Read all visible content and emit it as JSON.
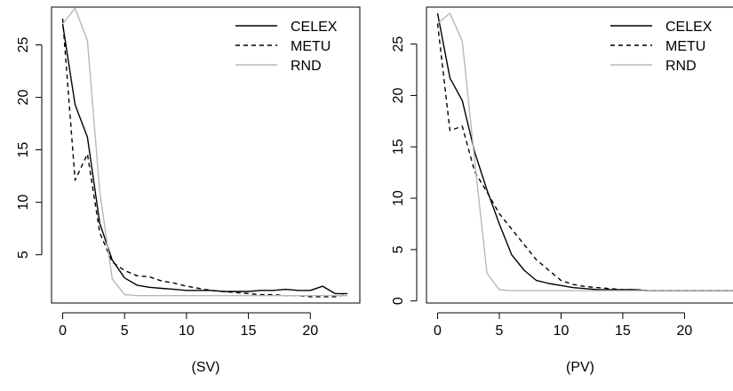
{
  "chart_data": [
    {
      "type": "line",
      "xlabel": "(SV)",
      "ylabel": "",
      "xlim": [
        -0.9,
        24
      ],
      "ylim": [
        0.4,
        28.6
      ],
      "xticks": [
        0,
        5,
        10,
        15,
        20
      ],
      "yticks": [
        5,
        10,
        15,
        20,
        25
      ],
      "grid": false,
      "legend_position": "top-right",
      "series": [
        {
          "name": "CELEX",
          "style": "solid",
          "color": "#000000",
          "x": [
            0,
            1,
            2,
            3,
            4,
            5,
            6,
            7,
            8,
            9,
            10,
            11,
            12,
            13,
            14,
            15,
            16,
            17,
            18,
            19,
            20,
            21,
            22,
            23
          ],
          "y": [
            27,
            19.3,
            16.2,
            8,
            4.5,
            2.8,
            2.1,
            1.9,
            1.8,
            1.7,
            1.6,
            1.6,
            1.6,
            1.5,
            1.5,
            1.5,
            1.6,
            1.6,
            1.7,
            1.6,
            1.6,
            2.0,
            1.3,
            1.3
          ]
        },
        {
          "name": "METU",
          "style": "dashed",
          "color": "#000000",
          "x": [
            0,
            1,
            2,
            3,
            4,
            5,
            6,
            7,
            8,
            9,
            10,
            11,
            12,
            13,
            14,
            15,
            16,
            17,
            18,
            19,
            20,
            21,
            22,
            23
          ],
          "y": [
            27.5,
            12.1,
            14.6,
            7.1,
            4.3,
            3.5,
            3.0,
            2.9,
            2.5,
            2.3,
            2.0,
            1.8,
            1.6,
            1.5,
            1.4,
            1.3,
            1.2,
            1.2,
            1.1,
            1.1,
            1.0,
            1.0,
            1.0,
            1.2
          ]
        },
        {
          "name": "RND",
          "style": "solid",
          "color": "#b8b8b8",
          "x": [
            0,
            1,
            2,
            3,
            4,
            5,
            6,
            7,
            8,
            9,
            10,
            11,
            12,
            13,
            14,
            15,
            16,
            17,
            18,
            19,
            20,
            21,
            22,
            23
          ],
          "y": [
            27,
            28.5,
            25.4,
            11,
            2.7,
            1.2,
            1.1,
            1.1,
            1.1,
            1.1,
            1.1,
            1.1,
            1.1,
            1.1,
            1.1,
            1.1,
            1.1,
            1.1,
            1.1,
            1.1,
            1.1,
            1.1,
            1.1,
            1.1
          ]
        }
      ]
    },
    {
      "type": "line",
      "xlabel": "(PV)",
      "ylabel": "",
      "xlim": [
        -0.9,
        24
      ],
      "ylim": [
        -0.2,
        28.6
      ],
      "xticks": [
        0,
        5,
        10,
        15,
        20
      ],
      "yticks": [
        0,
        5,
        10,
        15,
        20,
        25
      ],
      "grid": false,
      "legend_position": "top-right",
      "series": [
        {
          "name": "CELEX",
          "style": "solid",
          "color": "#000000",
          "x": [
            0,
            1,
            2,
            3,
            4,
            5,
            6,
            7,
            8,
            9,
            10,
            11,
            12,
            13,
            14,
            15,
            16,
            17,
            18,
            19,
            20,
            21,
            22,
            23,
            24
          ],
          "y": [
            28,
            21.7,
            19.5,
            14.5,
            10.8,
            7.5,
            4.5,
            3.0,
            2.0,
            1.7,
            1.5,
            1.3,
            1.2,
            1.1,
            1.1,
            1.1,
            1.1,
            1.0,
            1.0,
            1.0,
            1.0,
            1.0,
            1.0,
            1.0,
            1.0
          ]
        },
        {
          "name": "METU",
          "style": "dashed",
          "color": "#000000",
          "x": [
            0,
            1,
            2,
            3,
            4,
            5,
            6,
            7,
            8,
            9,
            10,
            11,
            12,
            13,
            14,
            15,
            16,
            17,
            18,
            19,
            20,
            21,
            22,
            23,
            24
          ],
          "y": [
            27,
            16.6,
            17,
            12.6,
            10.6,
            8.5,
            7.0,
            5.5,
            4.0,
            3.0,
            2.0,
            1.6,
            1.4,
            1.3,
            1.2,
            1.1,
            1.1,
            1.0,
            1.0,
            1.0,
            1.0,
            1.0,
            1.0,
            1.0,
            1.0
          ]
        },
        {
          "name": "RND",
          "style": "solid",
          "color": "#b8b8b8",
          "x": [
            0,
            1,
            2,
            3,
            4,
            5,
            6,
            7,
            8,
            9,
            10,
            11,
            12,
            13,
            14,
            15,
            16,
            17,
            18,
            19,
            20,
            21,
            22,
            23,
            24
          ],
          "y": [
            27,
            28,
            25.3,
            13.7,
            2.7,
            1.1,
            1.0,
            1.0,
            1.0,
            1.0,
            1.0,
            1.0,
            1.0,
            1.0,
            1.0,
            1.0,
            1.0,
            1.0,
            1.0,
            1.0,
            1.0,
            1.0,
            1.0,
            1.0,
            1.0
          ]
        }
      ]
    }
  ]
}
